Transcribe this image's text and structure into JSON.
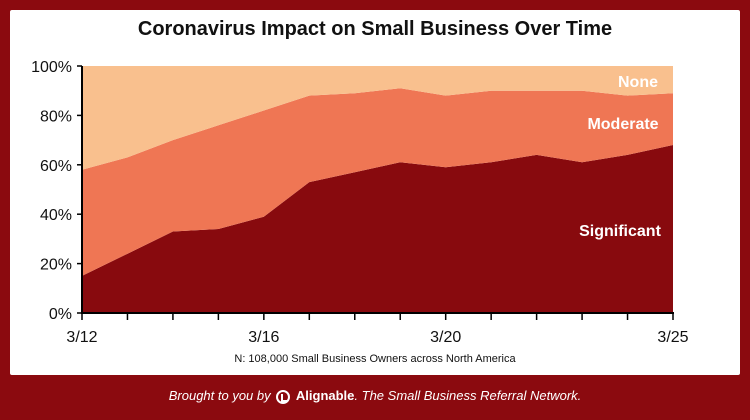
{
  "chart_data": {
    "type": "area",
    "stacked": true,
    "title": "Coronavirus Impact on Small Business Over Time",
    "subtitle": "N: 108,000 Small Business Owners across North America",
    "x": [
      0,
      1,
      2,
      3,
      4,
      5,
      6,
      7,
      8,
      9,
      10,
      11,
      12,
      13
    ],
    "x_tick_labels": [
      {
        "at": 0,
        "label": "3/12"
      },
      {
        "at": 4,
        "label": "3/16"
      },
      {
        "at": 8,
        "label": "3/20"
      },
      {
        "at": 13,
        "label": "3/25"
      }
    ],
    "y_ticks": [
      "0%",
      "20%",
      "40%",
      "60%",
      "80%",
      "100%"
    ],
    "ylim": [
      0,
      100
    ],
    "series": [
      {
        "name": "Significant",
        "color": "#880a0e",
        "values": [
          15,
          24,
          33,
          34,
          39,
          53,
          57,
          61,
          59,
          61,
          64,
          61,
          64,
          68
        ]
      },
      {
        "name": "Moderate",
        "color": "#ef7654",
        "values": [
          43,
          39,
          37,
          42,
          43,
          35,
          32,
          30,
          29,
          29,
          26,
          29,
          24,
          21
        ]
      },
      {
        "name": "None",
        "color": "#f9c08e",
        "values": [
          42,
          37,
          30,
          24,
          18,
          12,
          11,
          9,
          12,
          10,
          10,
          10,
          12,
          11
        ]
      }
    ]
  },
  "footer": {
    "prefix": "Brought to you by",
    "brand": "Alignable",
    "suffix": ". The Small Business Referral Network."
  }
}
